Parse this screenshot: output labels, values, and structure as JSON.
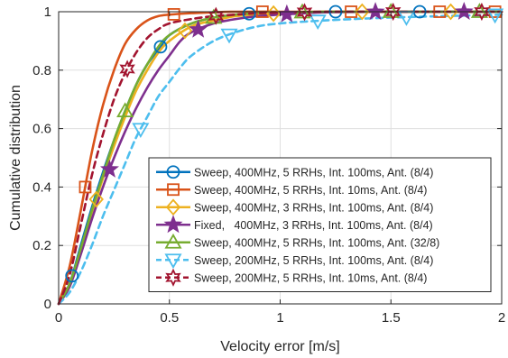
{
  "chart_data": {
    "type": "line",
    "title": "",
    "xlabel": "Velocity error [m/s]",
    "ylabel": "Cumulative distribution",
    "xlim": [
      0,
      2
    ],
    "ylim": [
      0,
      1
    ],
    "xticks": [
      0,
      0.5,
      1,
      1.5,
      2
    ],
    "xtick_labels": [
      "0",
      "0.5",
      "1",
      "1.5",
      "2"
    ],
    "yticks": [
      0,
      0.2,
      0.4,
      0.6,
      0.8,
      1
    ],
    "ytick_labels": [
      "0",
      "0.2",
      "0.4",
      "0.6",
      "0.8",
      "1"
    ],
    "grid": true,
    "legend_position": "bottom-right",
    "series": [
      {
        "name": "Sweep, 400MHz, 5 RRHs, Int. 100ms, Ant. (8/4)",
        "color": "#0072BD",
        "line": "solid",
        "marker": "circle",
        "x": [
          0,
          0.05,
          0.1,
          0.15,
          0.2,
          0.25,
          0.3,
          0.35,
          0.4,
          0.46,
          0.5,
          0.6,
          0.7,
          0.8,
          0.9,
          1.0,
          1.25,
          1.5,
          1.63,
          2.0
        ],
        "y": [
          0,
          0.07,
          0.2,
          0.33,
          0.45,
          0.56,
          0.66,
          0.75,
          0.82,
          0.88,
          0.92,
          0.96,
          0.98,
          0.99,
          0.995,
          0.997,
          1.0,
          1.0,
          1.0,
          1.0
        ],
        "markers_x": [
          0.06,
          0.46,
          0.86,
          1.25,
          1.63
        ]
      },
      {
        "name": "Sweep, 400MHz, 5 RRHs, Int. 10ms, Ant. (8/4)",
        "color": "#D95319",
        "line": "solid",
        "marker": "square",
        "x": [
          0,
          0.05,
          0.1,
          0.15,
          0.2,
          0.25,
          0.3,
          0.35,
          0.4,
          0.45,
          0.5,
          0.6,
          0.7,
          0.8,
          1.0,
          1.2,
          1.5,
          2.0
        ],
        "y": [
          0,
          0.13,
          0.32,
          0.52,
          0.68,
          0.8,
          0.89,
          0.94,
          0.97,
          0.985,
          0.99,
          0.995,
          0.998,
          1.0,
          1.0,
          1.0,
          1.0,
          1.0
        ],
        "markers_x": [
          0.12,
          0.52,
          0.92,
          1.32,
          1.72,
          1.97
        ]
      },
      {
        "name": "Sweep, 400MHz, 3 RRHs, Int. 100ms, Ant. (8/4)",
        "color": "#EDB120",
        "line": "solid",
        "marker": "diamond",
        "x": [
          0,
          0.05,
          0.1,
          0.15,
          0.2,
          0.25,
          0.3,
          0.35,
          0.4,
          0.45,
          0.5,
          0.6,
          0.7,
          0.8,
          0.9,
          1.0,
          1.2,
          1.5,
          2.0
        ],
        "y": [
          0,
          0.06,
          0.18,
          0.31,
          0.43,
          0.54,
          0.64,
          0.73,
          0.8,
          0.86,
          0.9,
          0.95,
          0.97,
          0.985,
          0.99,
          0.995,
          1.0,
          1.0,
          1.0
        ],
        "markers_x": [
          0.17,
          0.57,
          0.97,
          1.37,
          1.77
        ]
      },
      {
        "name": "Fixed,   400MHz, 3 RRHs, Int. 100ms, Ant. (8/4)",
        "color": "#7E2F8E",
        "line": "solid",
        "marker": "star",
        "x": [
          0,
          0.05,
          0.1,
          0.15,
          0.2,
          0.25,
          0.3,
          0.35,
          0.4,
          0.45,
          0.5,
          0.55,
          0.6,
          0.7,
          0.8,
          0.9,
          1.0,
          1.2,
          1.5,
          2.0
        ],
        "y": [
          0,
          0.06,
          0.17,
          0.29,
          0.4,
          0.5,
          0.59,
          0.67,
          0.74,
          0.8,
          0.85,
          0.9,
          0.93,
          0.96,
          0.975,
          0.985,
          0.99,
          0.998,
          1.0,
          1.0
        ],
        "markers_x": [
          0.23,
          0.63,
          1.03,
          1.43,
          1.83
        ]
      },
      {
        "name": "Sweep, 400MHz, 5 RRHs, Int. 100ms, Ant. (32/8)",
        "color": "#77AC30",
        "line": "solid",
        "marker": "triangle-up",
        "x": [
          0,
          0.05,
          0.1,
          0.15,
          0.2,
          0.25,
          0.3,
          0.35,
          0.4,
          0.45,
          0.5,
          0.6,
          0.7,
          0.8,
          0.9,
          1.0,
          1.2,
          1.5,
          2.0
        ],
        "y": [
          0,
          0.07,
          0.19,
          0.32,
          0.44,
          0.56,
          0.66,
          0.75,
          0.82,
          0.88,
          0.92,
          0.96,
          0.98,
          0.99,
          0.995,
          0.997,
          1.0,
          1.0,
          1.0
        ],
        "markers_x": [
          0.3,
          0.7,
          1.1,
          1.5,
          1.9
        ]
      },
      {
        "name": "Sweep, 200MHz, 5 RRHs, Int. 100ms, Ant. (8/4)",
        "color": "#4DBEEE",
        "line": "dashed",
        "marker": "triangle-down",
        "x": [
          0,
          0.05,
          0.1,
          0.15,
          0.2,
          0.25,
          0.3,
          0.35,
          0.4,
          0.45,
          0.5,
          0.55,
          0.6,
          0.7,
          0.8,
          0.9,
          1.0,
          1.2,
          1.5,
          2.0
        ],
        "y": [
          0,
          0.04,
          0.11,
          0.2,
          0.3,
          0.39,
          0.48,
          0.57,
          0.64,
          0.71,
          0.76,
          0.81,
          0.85,
          0.9,
          0.93,
          0.95,
          0.96,
          0.97,
          0.98,
          0.99
        ],
        "markers_x": [
          0.37,
          0.77,
          1.17,
          1.57,
          1.97
        ]
      },
      {
        "name": "Sweep, 200MHz, 5 RRHs, Int. 10ms, Ant. (8/4)",
        "color": "#A2142F",
        "line": "dashed",
        "marker": "hexagram",
        "x": [
          0,
          0.05,
          0.1,
          0.15,
          0.2,
          0.25,
          0.3,
          0.35,
          0.4,
          0.45,
          0.5,
          0.6,
          0.7,
          0.8,
          0.9,
          1.0,
          1.2,
          1.5,
          2.0
        ],
        "y": [
          0,
          0.1,
          0.27,
          0.44,
          0.58,
          0.7,
          0.79,
          0.86,
          0.91,
          0.94,
          0.96,
          0.975,
          0.985,
          0.99,
          0.995,
          0.997,
          1.0,
          1.0,
          1.0
        ],
        "markers_x": [
          0.31,
          0.71,
          1.11,
          1.51,
          1.91
        ]
      }
    ]
  }
}
